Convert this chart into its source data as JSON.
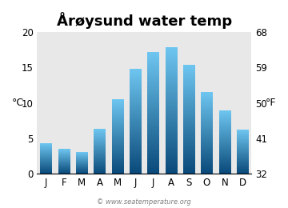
{
  "title": "Årøysund water temp",
  "months": [
    "J",
    "F",
    "M",
    "A",
    "M",
    "J",
    "J",
    "A",
    "S",
    "O",
    "N",
    "D"
  ],
  "values_c": [
    4.2,
    3.5,
    3.0,
    6.3,
    10.5,
    14.8,
    17.2,
    17.9,
    15.4,
    11.5,
    8.9,
    6.2
  ],
  "ylim_c": [
    0,
    20
  ],
  "yticks_c": [
    0,
    5,
    10,
    15,
    20
  ],
  "yticks_f": [
    32,
    41,
    50,
    59,
    68
  ],
  "ylabel_left": "°C",
  "ylabel_right": "°F",
  "color_bottom": "#0a4a7a",
  "color_top": "#6ec6f0",
  "bg_color": "#e8e8e8",
  "watermark": "© www.seatemperature.org",
  "title_fontsize": 13,
  "axis_fontsize": 9,
  "tick_fontsize": 8.5
}
